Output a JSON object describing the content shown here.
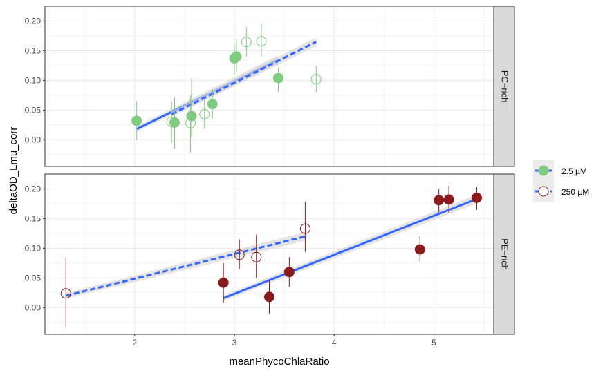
{
  "chart_data": {
    "type": "scatter",
    "xlabel": "meanPhycoChlaRatio",
    "ylabel": "deltaOD_Lmu_corr",
    "xlim": [
      1.1,
      5.6
    ],
    "x_ticks": [
      2,
      3,
      4,
      5
    ],
    "y_ticks": [
      0.0,
      0.05,
      0.1,
      0.15,
      0.2
    ],
    "y_tick_labels": [
      "0.00",
      "0.05",
      "0.10",
      "0.15",
      "0.20"
    ],
    "grid": true,
    "legend_position": "right",
    "legend": [
      {
        "label": "2.5 µM",
        "marker": "filled-circle",
        "line": "solid"
      },
      {
        "label": "250 µM",
        "marker": "open-circle",
        "line": "dashed"
      }
    ],
    "colors": {
      "pc_points": "#7fcd7f",
      "pe_points": "#8b1a1a",
      "fit_line": "#3366ff",
      "ribbon": "#d9d9d9",
      "strip_bg": "#d9d9d9",
      "grid": "#ebebeb"
    },
    "panels": [
      {
        "strip": "PC−rich",
        "ylim": [
          -0.045,
          0.225
        ],
        "series": [
          {
            "name": "2.5 µM",
            "points": [
              {
                "x": 2.02,
                "y": 0.032,
                "ymin": 0.0,
                "ymax": 0.065
              },
              {
                "x": 2.4,
                "y": 0.029,
                "ymin": -0.015,
                "ymax": 0.072
              },
              {
                "x": 2.57,
                "y": 0.04,
                "ymin": 0.005,
                "ymax": 0.103
              },
              {
                "x": 2.78,
                "y": 0.06,
                "ymin": 0.035,
                "ymax": 0.085
              },
              {
                "x": 3.0,
                "y": 0.137,
                "ymin": 0.11,
                "ymax": 0.16
              },
              {
                "x": 3.02,
                "y": 0.14,
                "ymin": 0.115,
                "ymax": 0.17
              },
              {
                "x": 3.44,
                "y": 0.104,
                "ymin": 0.08,
                "ymax": 0.122
              }
            ],
            "fit": {
              "x": [
                2.02,
                3.44
              ],
              "y": [
                0.018,
                0.135
              ]
            }
          },
          {
            "name": "250 µM",
            "points": [
              {
                "x": 2.37,
                "y": 0.03,
                "ymin": -0.005,
                "ymax": 0.065
              },
              {
                "x": 2.56,
                "y": 0.028,
                "ymin": -0.022,
                "ymax": 0.075
              },
              {
                "x": 2.7,
                "y": 0.043,
                "ymin": 0.018,
                "ymax": 0.068
              },
              {
                "x": 3.12,
                "y": 0.165,
                "ymin": 0.14,
                "ymax": 0.19
              },
              {
                "x": 3.27,
                "y": 0.166,
                "ymin": 0.14,
                "ymax": 0.195
              },
              {
                "x": 3.82,
                "y": 0.102,
                "ymin": 0.08,
                "ymax": 0.125
              }
            ],
            "fit": {
              "x": [
                2.37,
                3.82
              ],
              "y": [
                0.043,
                0.165
              ]
            }
          }
        ]
      },
      {
        "strip": "PE−rich",
        "ylim": [
          -0.045,
          0.225
        ],
        "series": [
          {
            "name": "2.5 µM",
            "points": [
              {
                "x": 2.89,
                "y": 0.042,
                "ymin": 0.008,
                "ymax": 0.075
              },
              {
                "x": 3.35,
                "y": 0.018,
                "ymin": -0.01,
                "ymax": 0.047
              },
              {
                "x": 3.55,
                "y": 0.06,
                "ymin": 0.035,
                "ymax": 0.085
              },
              {
                "x": 4.86,
                "y": 0.098,
                "ymin": 0.077,
                "ymax": 0.12
              },
              {
                "x": 5.05,
                "y": 0.181,
                "ymin": 0.16,
                "ymax": 0.2
              },
              {
                "x": 5.15,
                "y": 0.182,
                "ymin": 0.16,
                "ymax": 0.205
              },
              {
                "x": 5.43,
                "y": 0.185,
                "ymin": 0.165,
                "ymax": 0.203
              }
            ],
            "fit": {
              "x": [
                2.89,
                5.43
              ],
              "y": [
                0.016,
                0.183
              ]
            }
          },
          {
            "name": "250 µM",
            "points": [
              {
                "x": 1.31,
                "y": 0.024,
                "ymin": -0.032,
                "ymax": 0.084
              },
              {
                "x": 3.05,
                "y": 0.089,
                "ymin": 0.065,
                "ymax": 0.115
              },
              {
                "x": 3.22,
                "y": 0.085,
                "ymin": 0.05,
                "ymax": 0.123
              },
              {
                "x": 3.71,
                "y": 0.133,
                "ymin": 0.094,
                "ymax": 0.178
              }
            ],
            "fit": {
              "x": [
                1.31,
                3.71
              ],
              "y": [
                0.02,
                0.12
              ]
            }
          }
        ]
      }
    ]
  }
}
